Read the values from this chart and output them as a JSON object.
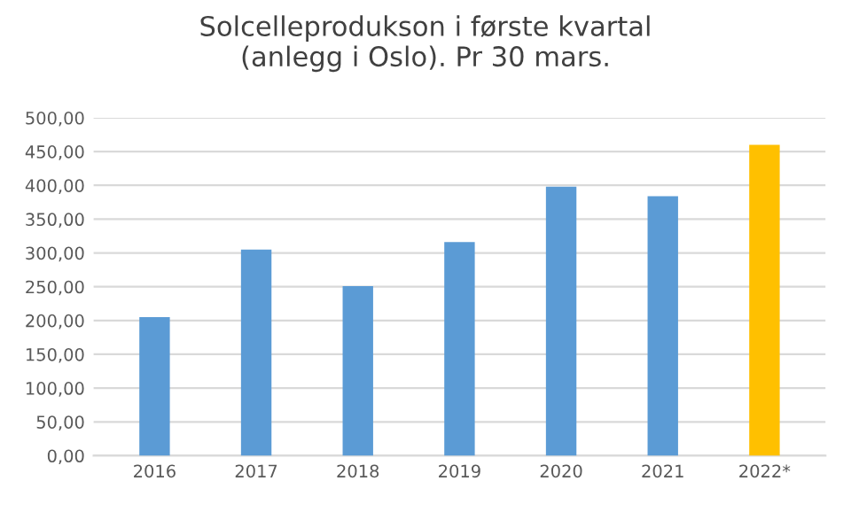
{
  "chart_data": {
    "type": "bar",
    "title": "Solcelleprodukson i første kvartal\n(anlegg i Oslo). Pr 30 mars.",
    "categories": [
      "2016",
      "2017",
      "2018",
      "2019",
      "2020",
      "2021",
      "2022*"
    ],
    "values": [
      205,
      305,
      251,
      316,
      398,
      384,
      460
    ],
    "colors": [
      "#5b9bd5",
      "#5b9bd5",
      "#5b9bd5",
      "#5b9bd5",
      "#5b9bd5",
      "#5b9bd5",
      "#ffc000"
    ],
    "ylim": [
      0,
      500
    ],
    "yticks": [
      {
        "value": 0,
        "label": "0,00"
      },
      {
        "value": 50,
        "label": "50,00"
      },
      {
        "value": 100,
        "label": "100,00"
      },
      {
        "value": 150,
        "label": "150,00"
      },
      {
        "value": 200,
        "label": "200,00"
      },
      {
        "value": 250,
        "label": "250,00"
      },
      {
        "value": 300,
        "label": "300,00"
      },
      {
        "value": 350,
        "label": "350,00"
      },
      {
        "value": 400,
        "label": "400,00"
      },
      {
        "value": 450,
        "label": "450,00"
      },
      {
        "value": 500,
        "label": "500,00"
      }
    ],
    "grid": "y",
    "legend": false
  }
}
